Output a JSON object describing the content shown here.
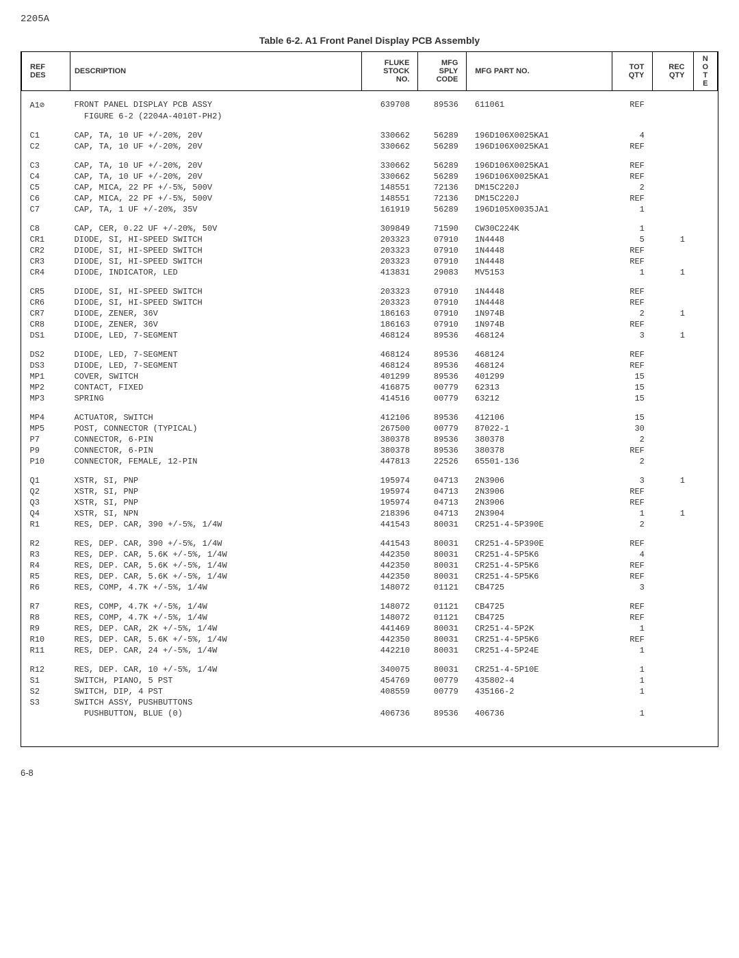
{
  "page_header": "2205A",
  "table_title": "Table 6-2. A1 Front Panel Display PCB Assembly",
  "columns": {
    "ref": "REF\nDES",
    "desc": "DESCRIPTION",
    "stock": "FLUKE\nSTOCK\nNO.",
    "sply": "MFG\nSPLY\nCODE",
    "part": "MFG PART NO.",
    "tot": "TOT\nQTY",
    "rec": "REC\nQTY",
    "note": "N\nO\nT\nE"
  },
  "groups": [
    [
      [
        "A1⊘",
        "FRONT PANEL DISPLAY PCB ASSY",
        "639708",
        "89536",
        "611061",
        "REF",
        "",
        ""
      ],
      [
        "",
        "  FIGURE 6-2 (2204A-4010T-PH2)",
        "",
        "",
        "",
        "",
        "",
        ""
      ]
    ],
    [
      [
        "C1",
        "CAP, TA, 10 UF +/-20%, 20V",
        "330662",
        "56289",
        "196D106X0025KA1",
        "4",
        "",
        ""
      ],
      [
        "C2",
        "CAP, TA, 10 UF +/-20%, 20V",
        "330662",
        "56289",
        "196D106X0025KA1",
        "REF",
        "",
        ""
      ]
    ],
    [
      [
        "C3",
        "CAP, TA, 10 UF +/-20%, 20V",
        "330662",
        "56289",
        "196D106X0025KA1",
        "REF",
        "",
        ""
      ],
      [
        "C4",
        "CAP, TA, 10 UF +/-20%, 20V",
        "330662",
        "56289",
        "196D106X0025KA1",
        "REF",
        "",
        ""
      ],
      [
        "C5",
        "CAP, MICA, 22 PF +/-5%, 500V",
        "148551",
        "72136",
        "DM15C220J",
        "2",
        "",
        ""
      ],
      [
        "C6",
        "CAP, MICA, 22 PF +/-5%, 500V",
        "148551",
        "72136",
        "DM15C220J",
        "REF",
        "",
        ""
      ],
      [
        "C7",
        "CAP, TA, 1 UF +/-20%, 35V",
        "161919",
        "56289",
        "196D105X0035JA1",
        "1",
        "",
        ""
      ]
    ],
    [
      [
        "C8",
        "CAP, CER, 0.22 UF +/-20%, 50V",
        "309849",
        "71590",
        "CW30C224K",
        "1",
        "",
        ""
      ],
      [
        "CR1",
        "DIODE, SI, HI-SPEED SWITCH",
        "203323",
        "07910",
        "1N4448",
        "5",
        "1",
        ""
      ],
      [
        "CR2",
        "DIODE, SI, HI-SPEED SWITCH",
        "203323",
        "07910",
        "1N4448",
        "REF",
        "",
        ""
      ],
      [
        "CR3",
        "DIODE, SI, HI-SPEED SWITCH",
        "203323",
        "07910",
        "1N4448",
        "REF",
        "",
        ""
      ],
      [
        "CR4",
        "DIODE, INDICATOR, LED",
        "413831",
        "29083",
        "MV5153",
        "1",
        "1",
        ""
      ]
    ],
    [
      [
        "CR5",
        "DIODE, SI, HI-SPEED SWITCH",
        "203323",
        "07910",
        "1N4448",
        "REF",
        "",
        ""
      ],
      [
        "CR6",
        "DIODE, SI, HI-SPEED SWITCH",
        "203323",
        "07910",
        "1N4448",
        "REF",
        "",
        ""
      ],
      [
        "CR7",
        "DIODE, ZENER, 36V",
        "186163",
        "07910",
        "1N974B",
        "2",
        "1",
        ""
      ],
      [
        "CR8",
        "DIODE, ZENER, 36V",
        "186163",
        "07910",
        "1N974B",
        "REF",
        "",
        ""
      ],
      [
        "DS1",
        "DIODE, LED, 7-SEGMENT",
        "468124",
        "89536",
        "468124",
        "3",
        "1",
        ""
      ]
    ],
    [
      [
        "DS2",
        "DIODE, LED, 7-SEGMENT",
        "468124",
        "89536",
        "468124",
        "REF",
        "",
        ""
      ],
      [
        "DS3",
        "DIODE, LED, 7-SEGMENT",
        "468124",
        "89536",
        "468124",
        "REF",
        "",
        ""
      ],
      [
        "MP1",
        "COVER, SWITCH",
        "401299",
        "89536",
        "401299",
        "15",
        "",
        ""
      ],
      [
        "MP2",
        "CONTACT, FIXED",
        "416875",
        "00779",
        "62313",
        "15",
        "",
        ""
      ],
      [
        "MP3",
        "SPRING",
        "414516",
        "00779",
        "63212",
        "15",
        "",
        ""
      ]
    ],
    [
      [
        "MP4",
        "ACTUATOR, SWITCH",
        "412106",
        "89536",
        "412106",
        "15",
        "",
        ""
      ],
      [
        "MP5",
        "POST, CONNECTOR (TYPICAL)",
        "267500",
        "00779",
        "87022-1",
        "30",
        "",
        ""
      ],
      [
        "P7",
        "CONNECTOR, 6-PIN",
        "380378",
        "89536",
        "380378",
        "2",
        "",
        ""
      ],
      [
        "P9",
        "CONNECTOR, 6-PIN",
        "380378",
        "89536",
        "380378",
        "REF",
        "",
        ""
      ],
      [
        "P10",
        "CONNECTOR, FEMALE, 12-PIN",
        "447813",
        "22526",
        "65501-136",
        "2",
        "",
        ""
      ]
    ],
    [
      [
        "Q1",
        "XSTR, SI, PNP",
        "195974",
        "04713",
        "2N3906",
        "3",
        "1",
        ""
      ],
      [
        "Q2",
        "XSTR, SI, PNP",
        "195974",
        "04713",
        "2N3906",
        "REF",
        "",
        ""
      ],
      [
        "Q3",
        "XSTR, SI, PNP",
        "195974",
        "04713",
        "2N3906",
        "REF",
        "",
        ""
      ],
      [
        "Q4",
        "XSTR, SI, NPN",
        "218396",
        "04713",
        "2N3904",
        "1",
        "1",
        ""
      ],
      [
        "R1",
        "RES, DEP. CAR, 390 +/-5%, 1/4W",
        "441543",
        "80031",
        "CR251-4-5P390E",
        "2",
        "",
        ""
      ]
    ],
    [
      [
        "R2",
        "RES, DEP. CAR, 390 +/-5%, 1/4W",
        "441543",
        "80031",
        "CR251-4-5P390E",
        "REF",
        "",
        ""
      ],
      [
        "R3",
        "RES, DEP. CAR, 5.6K +/-5%, 1/4W",
        "442350",
        "80031",
        "CR251-4-5P5K6",
        "4",
        "",
        ""
      ],
      [
        "R4",
        "RES, DEP. CAR, 5.6K +/-5%, 1/4W",
        "442350",
        "80031",
        "CR251-4-5P5K6",
        "REF",
        "",
        ""
      ],
      [
        "R5",
        "RES, DEP. CAR, 5.6K +/-5%, 1/4W",
        "442350",
        "80031",
        "CR251-4-5P5K6",
        "REF",
        "",
        ""
      ],
      [
        "R6",
        "RES, COMP, 4.7K +/-5%, 1/4W",
        "148072",
        "01121",
        "CB4725",
        "3",
        "",
        ""
      ]
    ],
    [
      [
        "R7",
        "RES, COMP, 4.7K +/-5%, 1/4W",
        "148072",
        "01121",
        "CB4725",
        "REF",
        "",
        ""
      ],
      [
        "R8",
        "RES, COMP, 4.7K +/-5%, 1/4W",
        "148072",
        "01121",
        "CB4725",
        "REF",
        "",
        ""
      ],
      [
        "R9",
        "RES, DEP. CAR, 2K +/-5%, 1/4W",
        "441469",
        "80031",
        "CR251-4-5P2K",
        "1",
        "",
        ""
      ],
      [
        "R10",
        "RES, DEP. CAR, 5.6K +/-5%, 1/4W",
        "442350",
        "80031",
        "CR251-4-5P5K6",
        "REF",
        "",
        ""
      ],
      [
        "R11",
        "RES, DEP. CAR, 24 +/-5%, 1/4W",
        "442210",
        "80031",
        "CR251-4-5P24E",
        "1",
        "",
        ""
      ]
    ],
    [
      [
        "R12",
        "RES, DEP. CAR, 10 +/-5%, 1/4W",
        "340075",
        "80031",
        "CR251-4-5P10E",
        "1",
        "",
        ""
      ],
      [
        "S1",
        "SWITCH, PIANO, 5 PST",
        "454769",
        "00779",
        "435802-4",
        "1",
        "",
        ""
      ],
      [
        "S2",
        "SWITCH, DIP, 4 PST",
        "408559",
        "00779",
        "435166-2",
        "1",
        "",
        ""
      ],
      [
        "S3",
        "SWITCH ASSY, PUSHBUTTONS",
        "",
        "",
        "",
        "",
        "",
        ""
      ],
      [
        "",
        "  PUSHBUTTON, BLUE (0)",
        "406736",
        "89536",
        "406736",
        "1",
        "",
        ""
      ]
    ]
  ],
  "footer": "6-8"
}
